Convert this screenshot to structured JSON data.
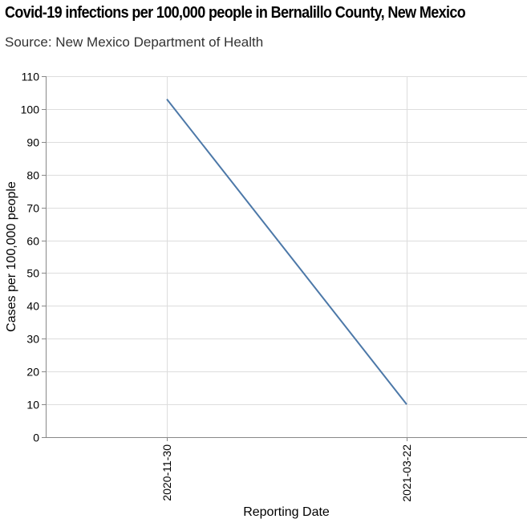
{
  "chart_data": {
    "type": "line",
    "title": "Covid-19 infections per 100,000 people in Bernalillo County, New Mexico",
    "subtitle": "Source: New Mexico Department of Health",
    "xlabel": "Reporting Date",
    "ylabel": "Cases per 100,000 people",
    "x": [
      "2020-11-30",
      "2021-03-22"
    ],
    "y_ticks": [
      0,
      10,
      20,
      30,
      40,
      50,
      60,
      70,
      80,
      90,
      100,
      110
    ],
    "ylim": [
      0,
      110
    ],
    "grid": true,
    "series": [
      {
        "values": [
          103,
          10
        ],
        "color": "#4c78a8"
      }
    ]
  }
}
